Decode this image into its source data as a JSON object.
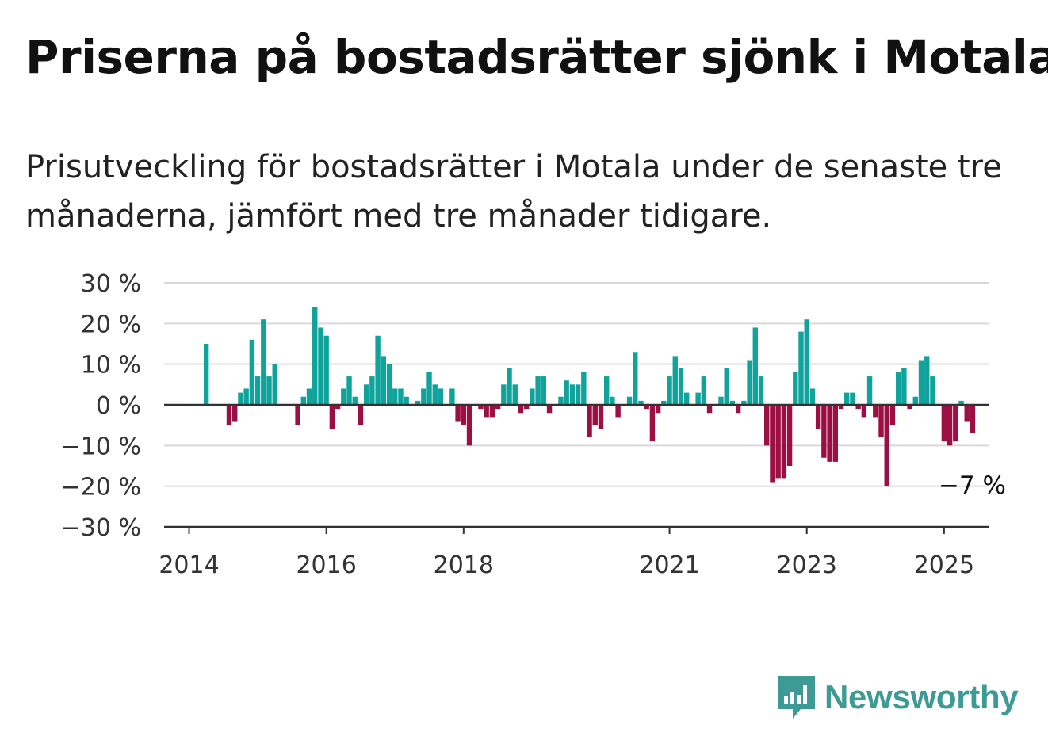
{
  "title": "Priserna på bostadsrätter sjönk i Motala",
  "subtitle": "Prisutveckling för bostadsrätter i Motala under de senaste tre månaderna, jämfört med tre månader tidigare.",
  "brand": {
    "name": "Newsworthy",
    "color": "#3d9a94",
    "icon": "newsworthy-logo-icon"
  },
  "colors": {
    "positive": "#0fa39b",
    "negative": "#9c0f42",
    "grid": "#d9d9d9",
    "axis": "#333333"
  },
  "chart_data": {
    "type": "bar",
    "ylim": [
      -30,
      30
    ],
    "yticks": [
      30,
      20,
      10,
      0,
      -10,
      -20,
      -30
    ],
    "ytick_labels": [
      "30 %",
      "20 %",
      "10 %",
      "0 %",
      "−10 %",
      "−20 %",
      "−30 %"
    ],
    "xticks": [
      {
        "year": 2014,
        "label": "2014"
      },
      {
        "year": 2016,
        "label": "2016"
      },
      {
        "year": 2018,
        "label": "2018"
      },
      {
        "year": 2021,
        "label": "2021"
      },
      {
        "year": 2023,
        "label": "2023"
      },
      {
        "year": 2025,
        "label": "2025"
      }
    ],
    "start": "2014-01",
    "period": "month",
    "values": [
      0,
      0,
      0,
      15,
      0,
      0,
      0,
      -5,
      -4,
      3,
      4,
      16,
      7,
      21,
      7,
      10,
      0,
      0,
      0,
      -5,
      2,
      4,
      24,
      19,
      17,
      -6,
      -1,
      4,
      7,
      2,
      -5,
      5,
      7,
      17,
      12,
      10,
      4,
      4,
      2,
      0,
      1,
      4,
      8,
      5,
      4,
      0,
      4,
      -4,
      -5,
      -10,
      0,
      -1,
      -3,
      -3,
      -1,
      5,
      9,
      5,
      -2,
      -1,
      4,
      7,
      7,
      -2,
      0,
      2,
      6,
      5,
      5,
      8,
      -8,
      -5,
      -6,
      7,
      2,
      -3,
      0,
      2,
      13,
      1,
      -1,
      -9,
      -2,
      1,
      7,
      12,
      9,
      3,
      0,
      3,
      7,
      -2,
      0,
      2,
      9,
      1,
      -2,
      1,
      11,
      19,
      7,
      -10,
      -19,
      -18,
      -18,
      -15,
      8,
      18,
      21,
      4,
      -6,
      -13,
      -14,
      -14,
      -1,
      3,
      3,
      -1,
      -3,
      7,
      -3,
      -8,
      -20,
      -5,
      8,
      9,
      -1,
      2,
      11,
      12,
      7,
      0,
      -9,
      -10,
      -9,
      1,
      -4,
      -7
    ],
    "annotation": {
      "text": "−7 %",
      "value": -7
    }
  }
}
